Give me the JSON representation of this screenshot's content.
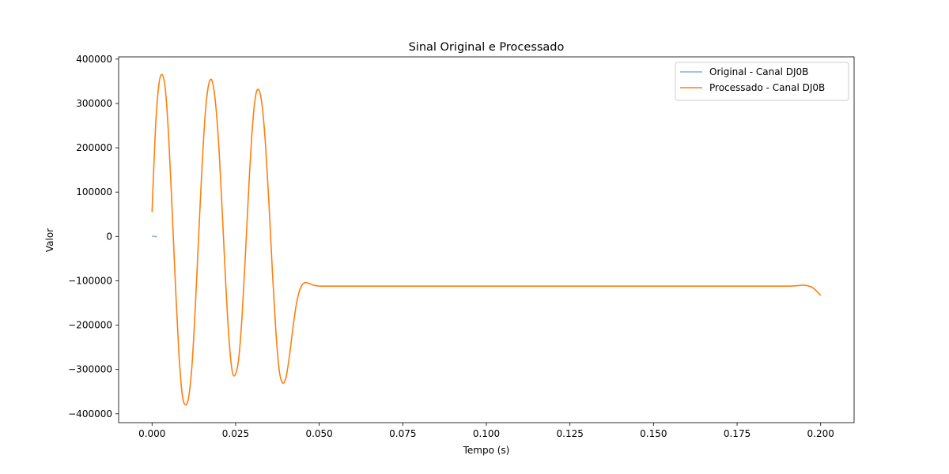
{
  "chart_data": {
    "type": "line",
    "title": "Sinal Original e Processado",
    "xlabel": "Tempo (s)",
    "ylabel": "Valor",
    "xlim": [
      -0.01,
      0.21
    ],
    "ylim": [
      -420000,
      405000
    ],
    "xticks": [
      0.0,
      0.025,
      0.05,
      0.075,
      0.1,
      0.125,
      0.15,
      0.175,
      0.2
    ],
    "xtick_labels": [
      "0.000",
      "0.025",
      "0.050",
      "0.075",
      "0.100",
      "0.125",
      "0.150",
      "0.175",
      "0.200"
    ],
    "yticks": [
      -400000,
      -300000,
      -200000,
      -100000,
      0,
      100000,
      200000,
      300000,
      400000
    ],
    "ytick_labels": [
      "−400000",
      "−300000",
      "−200000",
      "−100000",
      "0",
      "100000",
      "200000",
      "300000",
      "400000"
    ],
    "grid": false,
    "legend_position": "top-right",
    "series": [
      {
        "name": "Original - Canal DJ0B",
        "color": "#1f77b4",
        "opacity": 0.55,
        "x": [
          0.0,
          0.0005,
          0.001,
          0.0015
        ],
        "y": [
          0,
          500,
          -500,
          0
        ]
      },
      {
        "name": "Processado - Canal DJ0B",
        "color": "#ff7f0e",
        "opacity": 1,
        "x": [
          0.0,
          0.001,
          0.002,
          0.003,
          0.004,
          0.005,
          0.006,
          0.007,
          0.008,
          0.009,
          0.01,
          0.011,
          0.012,
          0.013,
          0.014,
          0.015,
          0.016,
          0.017,
          0.018,
          0.019,
          0.02,
          0.021,
          0.022,
          0.023,
          0.024,
          0.025,
          0.026,
          0.027,
          0.028,
          0.029,
          0.03,
          0.031,
          0.032,
          0.033,
          0.034,
          0.035,
          0.036,
          0.037,
          0.038,
          0.039,
          0.04,
          0.041,
          0.042,
          0.043,
          0.044,
          0.045,
          0.046,
          0.047,
          0.048,
          0.049,
          0.05,
          0.051,
          0.052,
          0.053,
          0.054,
          0.055,
          0.056,
          0.057,
          0.058,
          0.06,
          0.065,
          0.07,
          0.08,
          0.1,
          0.12,
          0.14,
          0.16,
          0.18,
          0.19,
          0.193,
          0.195,
          0.197,
          0.198,
          0.199,
          0.2
        ],
        "y": [
          55000,
          240000,
          340000,
          365000,
          330000,
          220000,
          60000,
          -110000,
          -260000,
          -355000,
          -380000,
          -360000,
          -285000,
          -150000,
          10000,
          165000,
          285000,
          345000,
          350000,
          300000,
          200000,
          55000,
          -100000,
          -230000,
          -305000,
          -310000,
          -270000,
          -170000,
          -30000,
          120000,
          245000,
          318000,
          330000,
          290000,
          200000,
          70000,
          -80000,
          -210000,
          -300000,
          -330000,
          -320000,
          -275000,
          -215000,
          -160000,
          -125000,
          -108000,
          -104000,
          -106000,
          -109000,
          -111000,
          -112000,
          -112000,
          -112000,
          -112000,
          -112000,
          -112000,
          -112000,
          -112000,
          -112000,
          -112000,
          -112000,
          -112000,
          -112000,
          -112000,
          -112000,
          -112000,
          -112000,
          -112000,
          -112000,
          -111000,
          -110000,
          -113000,
          -118000,
          -125000,
          -133000
        ]
      }
    ]
  }
}
